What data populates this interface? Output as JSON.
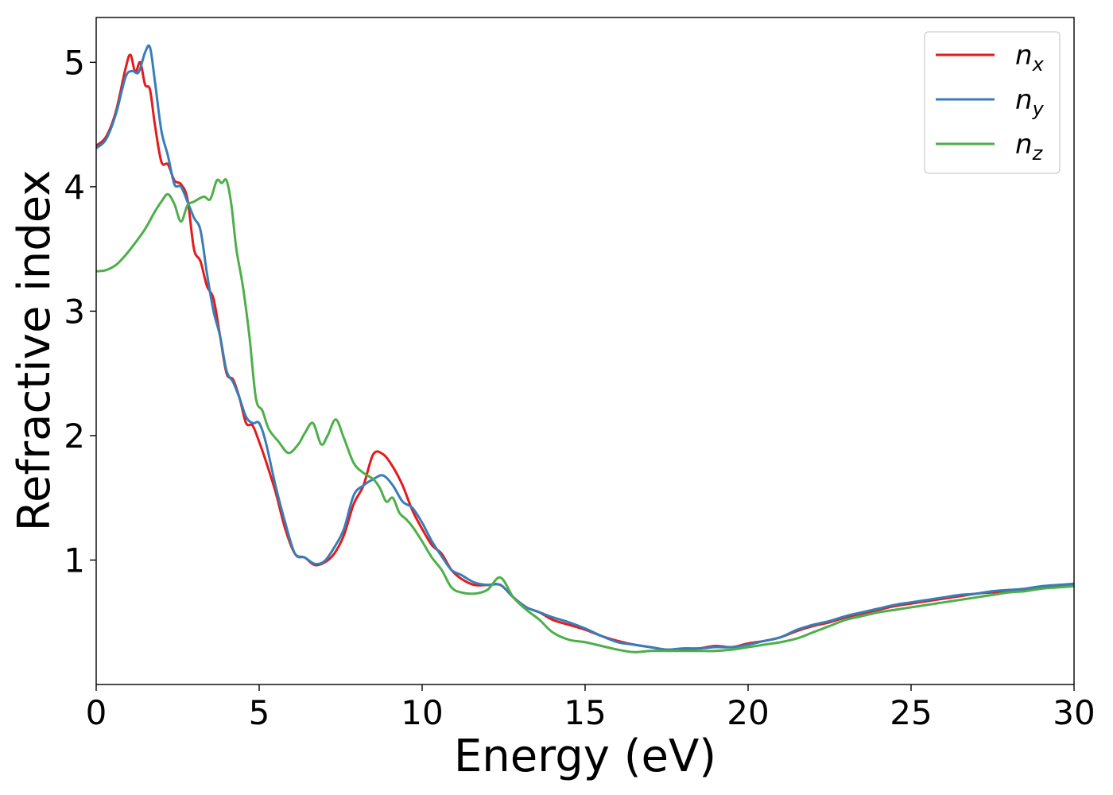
{
  "chart_data": {
    "type": "line",
    "title": "",
    "xlabel": "Energy (eV)",
    "ylabel": "Refractive index",
    "xlim": [
      0,
      30
    ],
    "ylim": [
      0.0,
      5.36
    ],
    "xticks": [
      0,
      5,
      10,
      15,
      20,
      25,
      30
    ],
    "yticks": [
      1,
      2,
      3,
      4,
      5
    ],
    "grid": false,
    "legend_position": "top-right",
    "series": [
      {
        "name": "n",
        "subscript": "x",
        "color": "#e41a1c",
        "x": [
          0,
          0.3,
          0.6,
          0.9,
          1.05,
          1.2,
          1.35,
          1.5,
          1.65,
          1.8,
          2.0,
          2.2,
          2.4,
          2.6,
          2.8,
          3.0,
          3.2,
          3.4,
          3.6,
          3.8,
          4.0,
          4.2,
          4.4,
          4.6,
          4.8,
          5.0,
          5.2,
          5.5,
          5.8,
          6.1,
          6.4,
          6.7,
          7.0,
          7.3,
          7.6,
          7.9,
          8.2,
          8.5,
          8.8,
          9.1,
          9.4,
          9.7,
          10.0,
          10.3,
          10.6,
          10.9,
          11.2,
          11.6,
          12.0,
          12.4,
          12.8,
          13.2,
          13.6,
          14.0,
          14.5,
          15.0,
          15.5,
          16.0,
          16.5,
          17.0,
          17.5,
          18.0,
          18.5,
          19.0,
          19.5,
          20.0,
          20.5,
          21.0,
          21.5,
          22.0,
          22.5,
          23.0,
          23.5,
          24.0,
          24.5,
          25.0,
          25.5,
          26.0,
          26.5,
          27.0,
          27.5,
          28.0,
          28.5,
          29.0,
          29.5,
          30.0
        ],
        "y": [
          4.33,
          4.4,
          4.6,
          4.95,
          5.06,
          4.92,
          5.0,
          4.82,
          4.78,
          4.5,
          4.2,
          4.18,
          4.05,
          4.02,
          3.9,
          3.5,
          3.4,
          3.2,
          3.1,
          2.8,
          2.5,
          2.45,
          2.3,
          2.1,
          2.08,
          1.95,
          1.8,
          1.55,
          1.25,
          1.05,
          1.02,
          0.96,
          0.98,
          1.05,
          1.2,
          1.45,
          1.6,
          1.85,
          1.85,
          1.75,
          1.6,
          1.4,
          1.25,
          1.12,
          1.05,
          0.92,
          0.85,
          0.8,
          0.8,
          0.8,
          0.7,
          0.62,
          0.58,
          0.52,
          0.48,
          0.44,
          0.39,
          0.35,
          0.32,
          0.3,
          0.28,
          0.28,
          0.29,
          0.31,
          0.3,
          0.33,
          0.35,
          0.38,
          0.43,
          0.47,
          0.5,
          0.54,
          0.57,
          0.6,
          0.63,
          0.65,
          0.67,
          0.69,
          0.71,
          0.73,
          0.74,
          0.75,
          0.76,
          0.78,
          0.79,
          0.81
        ]
      },
      {
        "name": "n",
        "subscript": "y",
        "color": "#377eb8",
        "x": [
          0,
          0.3,
          0.6,
          0.9,
          1.1,
          1.3,
          1.5,
          1.65,
          1.8,
          2.0,
          2.2,
          2.4,
          2.6,
          2.8,
          3.0,
          3.2,
          3.4,
          3.6,
          3.8,
          4.0,
          4.2,
          4.4,
          4.6,
          4.8,
          5.0,
          5.2,
          5.5,
          5.8,
          6.1,
          6.4,
          6.7,
          7.0,
          7.3,
          7.6,
          7.9,
          8.2,
          8.5,
          8.8,
          9.1,
          9.4,
          9.7,
          10.0,
          10.3,
          10.6,
          10.9,
          11.2,
          11.6,
          12.0,
          12.4,
          12.8,
          13.2,
          13.6,
          14.0,
          14.5,
          15.0,
          15.5,
          16.0,
          16.5,
          17.0,
          17.5,
          18.0,
          18.5,
          19.0,
          19.5,
          20.0,
          20.5,
          21.0,
          21.5,
          22.0,
          22.5,
          23.0,
          23.5,
          24.0,
          24.5,
          25.0,
          25.5,
          26.0,
          26.5,
          27.0,
          27.5,
          28.0,
          28.5,
          29.0,
          29.5,
          30.0
        ],
        "y": [
          4.31,
          4.38,
          4.58,
          4.88,
          4.93,
          4.92,
          5.08,
          5.12,
          4.85,
          4.45,
          4.25,
          4.02,
          4.0,
          3.88,
          3.75,
          3.65,
          3.3,
          3.0,
          2.8,
          2.52,
          2.43,
          2.3,
          2.15,
          2.1,
          2.1,
          1.95,
          1.6,
          1.3,
          1.05,
          1.02,
          0.97,
          0.99,
          1.1,
          1.25,
          1.52,
          1.6,
          1.65,
          1.68,
          1.6,
          1.47,
          1.42,
          1.3,
          1.15,
          1.03,
          0.92,
          0.88,
          0.82,
          0.8,
          0.8,
          0.7,
          0.62,
          0.58,
          0.54,
          0.5,
          0.45,
          0.39,
          0.34,
          0.32,
          0.3,
          0.28,
          0.29,
          0.29,
          0.3,
          0.3,
          0.32,
          0.35,
          0.38,
          0.44,
          0.48,
          0.51,
          0.55,
          0.58,
          0.61,
          0.64,
          0.66,
          0.68,
          0.7,
          0.72,
          0.73,
          0.75,
          0.76,
          0.77,
          0.79,
          0.8,
          0.81
        ]
      },
      {
        "name": "n",
        "subscript": "z",
        "color": "#4daf4a",
        "x": [
          0,
          0.3,
          0.6,
          0.9,
          1.2,
          1.5,
          1.8,
          2.0,
          2.2,
          2.4,
          2.6,
          2.8,
          3.0,
          3.3,
          3.5,
          3.7,
          3.85,
          4.0,
          4.15,
          4.3,
          4.5,
          4.7,
          4.9,
          5.1,
          5.3,
          5.6,
          5.9,
          6.2,
          6.4,
          6.65,
          6.9,
          7.1,
          7.35,
          7.6,
          7.9,
          8.2,
          8.5,
          8.7,
          8.9,
          9.1,
          9.3,
          9.5,
          9.7,
          10.0,
          10.3,
          10.6,
          10.9,
          11.2,
          11.6,
          12.0,
          12.4,
          12.8,
          13.2,
          13.6,
          14.0,
          14.5,
          15.0,
          15.5,
          16.0,
          16.5,
          17.0,
          17.5,
          18.0,
          18.5,
          19.0,
          19.5,
          20.0,
          20.5,
          21.0,
          21.5,
          22.0,
          22.5,
          23.0,
          23.5,
          24.0,
          24.5,
          25.0,
          25.5,
          26.0,
          26.5,
          27.0,
          27.5,
          28.0,
          28.5,
          29.0,
          29.5,
          30.0
        ],
        "y": [
          3.32,
          3.33,
          3.37,
          3.45,
          3.55,
          3.66,
          3.8,
          3.88,
          3.94,
          3.86,
          3.72,
          3.85,
          3.88,
          3.92,
          3.9,
          4.05,
          4.03,
          4.05,
          3.85,
          3.5,
          3.2,
          2.8,
          2.3,
          2.2,
          2.05,
          1.95,
          1.86,
          1.93,
          2.02,
          2.1,
          1.93,
          2.0,
          2.13,
          1.98,
          1.78,
          1.7,
          1.65,
          1.58,
          1.47,
          1.5,
          1.38,
          1.33,
          1.27,
          1.15,
          1.02,
          0.92,
          0.78,
          0.74,
          0.73,
          0.76,
          0.86,
          0.7,
          0.6,
          0.52,
          0.42,
          0.36,
          0.34,
          0.31,
          0.28,
          0.26,
          0.27,
          0.27,
          0.27,
          0.27,
          0.27,
          0.28,
          0.3,
          0.32,
          0.34,
          0.37,
          0.42,
          0.47,
          0.52,
          0.55,
          0.58,
          0.6,
          0.62,
          0.64,
          0.66,
          0.68,
          0.7,
          0.72,
          0.74,
          0.75,
          0.77,
          0.78,
          0.79
        ]
      }
    ]
  }
}
